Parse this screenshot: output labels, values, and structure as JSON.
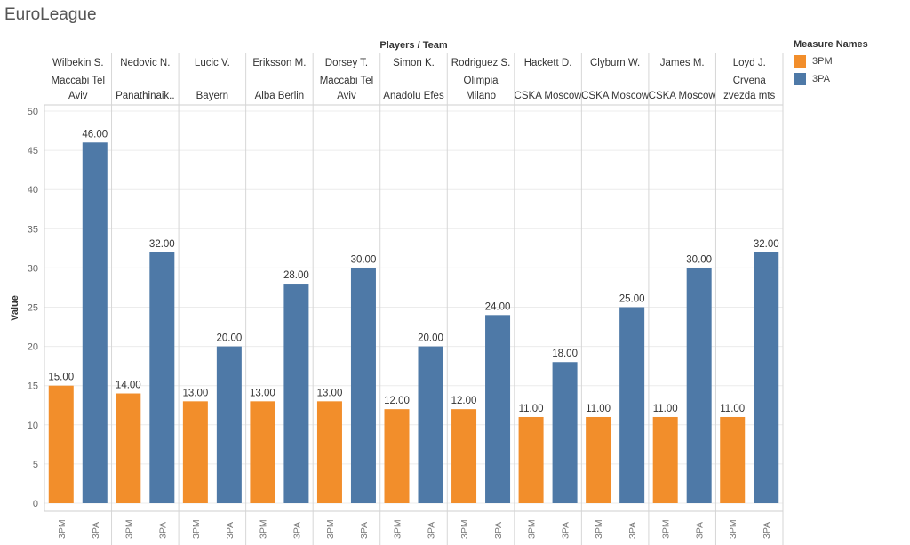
{
  "title": "EuroLeague",
  "legend": {
    "title": "Measure Names",
    "items": [
      {
        "label": "3PM",
        "color": "#f28e2b"
      },
      {
        "label": "3PA",
        "color": "#4e79a7"
      }
    ]
  },
  "chart_data": {
    "type": "bar",
    "header_title": "Players / Team",
    "ylabel": "Value",
    "ylim": [
      0,
      50
    ],
    "yticks": [
      0,
      5,
      10,
      15,
      20,
      25,
      30,
      35,
      40,
      45,
      50
    ],
    "grid": true,
    "legend_position": "right",
    "measures": [
      "3PM",
      "3PA"
    ],
    "categories": [
      {
        "player": "Wilbekin S.",
        "team": [
          "Maccabi Tel",
          "Aviv"
        ],
        "values": [
          15,
          46
        ]
      },
      {
        "player": "Nedovic N.",
        "team": [
          "",
          "Panathinaik.."
        ],
        "values": [
          14,
          32
        ]
      },
      {
        "player": "Lucic V.",
        "team": [
          "",
          "Bayern"
        ],
        "values": [
          13,
          20
        ]
      },
      {
        "player": "Eriksson M.",
        "team": [
          "",
          "Alba Berlin"
        ],
        "values": [
          13,
          28
        ]
      },
      {
        "player": "Dorsey T.",
        "team": [
          "Maccabi Tel",
          "Aviv"
        ],
        "values": [
          13,
          30
        ]
      },
      {
        "player": "Simon K.",
        "team": [
          "",
          "Anadolu Efes"
        ],
        "values": [
          12,
          20
        ]
      },
      {
        "player": "Rodriguez S.",
        "team": [
          "Olimpia",
          "Milano"
        ],
        "values": [
          12,
          24
        ]
      },
      {
        "player": "Hackett D.",
        "team": [
          "",
          "CSKA Moscow"
        ],
        "values": [
          11,
          18
        ]
      },
      {
        "player": "Clyburn W.",
        "team": [
          "",
          "CSKA Moscow"
        ],
        "values": [
          11,
          25
        ]
      },
      {
        "player": "James M.",
        "team": [
          "",
          "CSKA Moscow"
        ],
        "values": [
          11,
          30
        ]
      },
      {
        "player": "Loyd J.",
        "team": [
          "Crvena",
          "zvezda mts"
        ],
        "values": [
          11,
          32
        ]
      }
    ],
    "series": [
      {
        "name": "3PM",
        "values": [
          15,
          14,
          13,
          13,
          13,
          12,
          12,
          11,
          11,
          11,
          11
        ]
      },
      {
        "name": "3PA",
        "values": [
          46,
          32,
          20,
          28,
          30,
          20,
          24,
          18,
          25,
          30,
          32
        ]
      }
    ],
    "value_label_format": "2 decimals"
  }
}
